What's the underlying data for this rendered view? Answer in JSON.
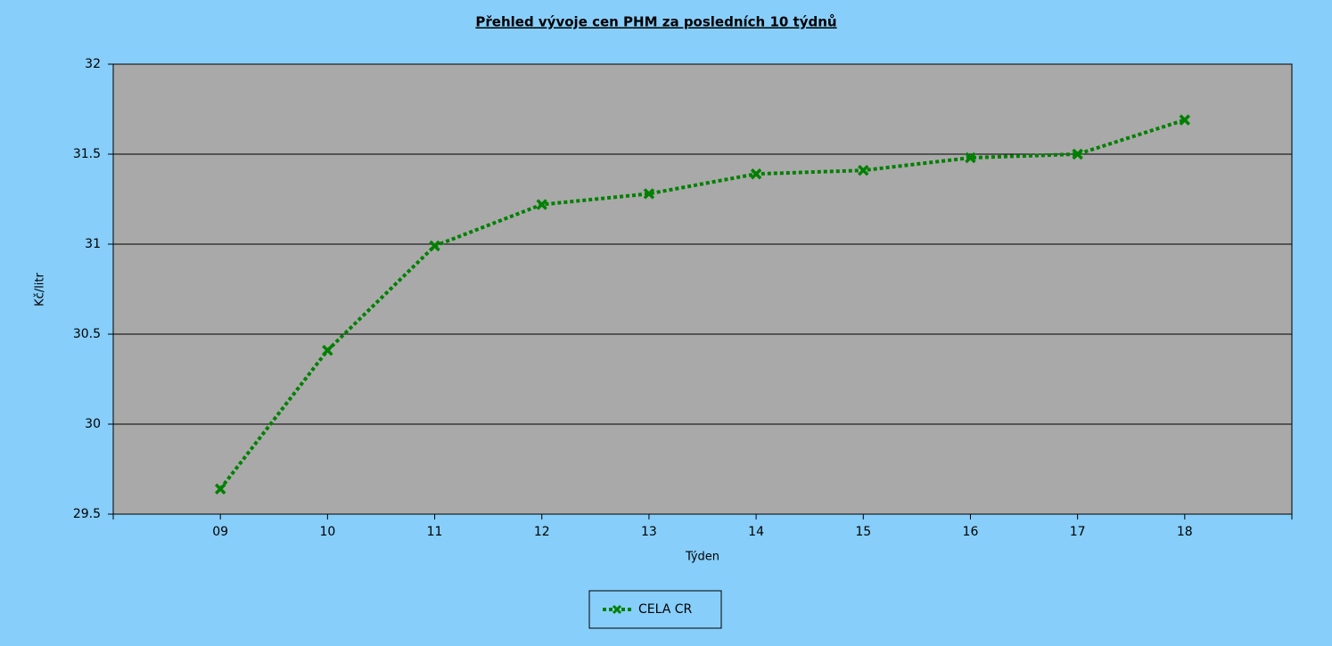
{
  "chart_data": {
    "type": "line",
    "title": "Přehled vývoje cen PHM za posledních 10 týdnů",
    "x_label": "Týden",
    "y_label": "Kč/litr",
    "categories": [
      "09",
      "10",
      "11",
      "12",
      "13",
      "14",
      "15",
      "16",
      "17",
      "18"
    ],
    "series": [
      {
        "name": "CELA CR",
        "color": "#008000",
        "values": [
          29.64,
          30.41,
          30.99,
          31.22,
          31.28,
          31.39,
          31.41,
          31.48,
          31.5,
          31.69
        ]
      }
    ],
    "ylim": [
      29.5,
      32
    ],
    "yticks": [
      29.5,
      30,
      30.5,
      31,
      31.5,
      32
    ],
    "grid": true,
    "legend": "bottom"
  }
}
